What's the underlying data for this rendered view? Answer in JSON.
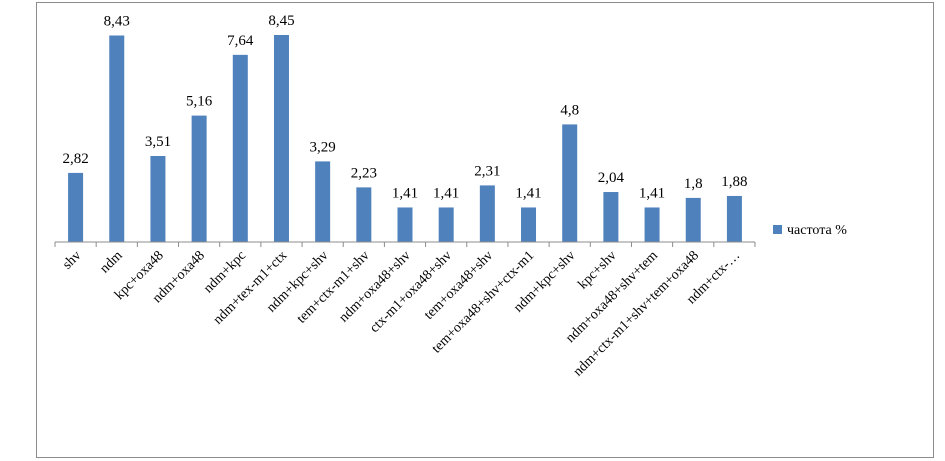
{
  "chart_data": {
    "type": "bar",
    "categories": [
      "shv",
      "ndm",
      "kpc+oxa48",
      "ndm+oxa48",
      "ndm+kpc",
      "ndm+tex-m1+ctx",
      "ndm+kpc+shv",
      "tem+ctx-m1+shv",
      "ndm+oxa48+shv",
      "ctx-m1+oxa48+shv",
      "tem+oxa48+shv",
      "tem+oxa48+shv+ctx-m1",
      "ndm+kpc+shv",
      "kpc+shv",
      "ndm+oxa48+shv+tem",
      "ndm+ctx-m1+shv+tem+oxa48",
      "ndm+ctx-…"
    ],
    "series": [
      {
        "name": "частота %",
        "values": [
          2.82,
          8.43,
          3.51,
          5.16,
          7.64,
          8.45,
          3.29,
          2.23,
          1.41,
          1.41,
          2.31,
          1.41,
          4.8,
          2.04,
          1.41,
          1.8,
          1.88
        ],
        "labels": [
          "2,82",
          "8,43",
          "3,51",
          "5,16",
          "7,64",
          "8,45",
          "3,29",
          "2,23",
          "1,41",
          "1,41",
          "2,31",
          "1,41",
          "4,8",
          "2,04",
          "1,41",
          "1,8",
          "1,88"
        ]
      }
    ],
    "ylim": [
      0,
      8.45
    ],
    "grid": false,
    "legend_position": "right",
    "bar_color": "#4f81bd"
  }
}
